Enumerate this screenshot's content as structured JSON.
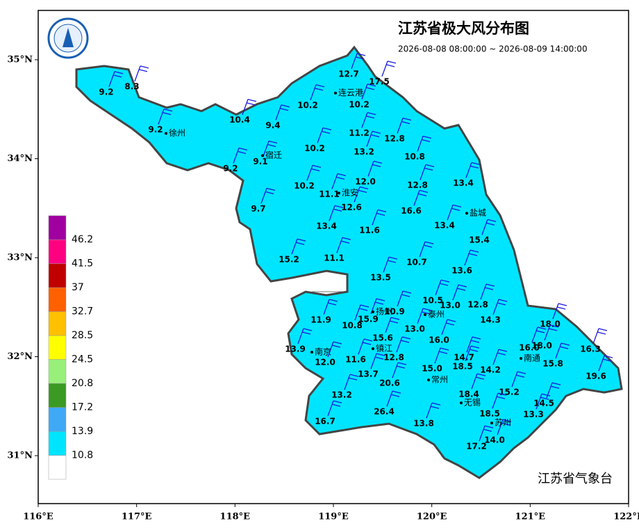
{
  "header": {
    "title": "江苏省极大风分布图",
    "time_range": "2026-08-08 08:00:00 ~ 2026-08-09 14:00:00"
  },
  "axes": {
    "lon_ticks": [
      {
        "value": 116,
        "label": "116°E"
      },
      {
        "value": 117,
        "label": "117°E"
      },
      {
        "value": 118,
        "label": "118°E"
      },
      {
        "value": 119,
        "label": "119°E"
      },
      {
        "value": 120,
        "label": "120°E"
      },
      {
        "value": 121,
        "label": "121°E"
      },
      {
        "value": 122,
        "label": "122°E"
      }
    ],
    "lat_ticks": [
      {
        "value": 35,
        "label": "35°N"
      },
      {
        "value": 34,
        "label": "34°N"
      },
      {
        "value": 33,
        "label": "33°N"
      },
      {
        "value": 32,
        "label": "32°N"
      },
      {
        "value": 31,
        "label": "31°N"
      }
    ]
  },
  "legend": {
    "levels": [
      10.8,
      13.9,
      17.2,
      20.8,
      24.5,
      28.5,
      32.7,
      37,
      41.5,
      46.2
    ],
    "colors": [
      "#ffffff",
      "#00e5ff",
      "#3fa9f5",
      "#3a9a23",
      "#98f07a",
      "#ffff00",
      "#ffc000",
      "#ff6000",
      "#c00000",
      "#ff0080",
      "#a000a0"
    ]
  },
  "stations": [
    "9.2",
    "8.3",
    "9.2",
    "10.4",
    "9.4",
    "10.2",
    "12.7",
    "17.5",
    "10.2",
    "11.2",
    "12.8",
    "13.2",
    "10.8",
    "10.2",
    "9.1",
    "9.2",
    "10.2",
    "11.1",
    "12.0",
    "12.8",
    "13.4",
    "9.7",
    "12.6",
    "16.6",
    "13.4",
    "11.6",
    "13.4",
    "15.4",
    "15.2",
    "11.1",
    "10.7",
    "13.6",
    "13.5",
    "10.5",
    "13.0",
    "12.8",
    "11.9",
    "10.8",
    "15.9",
    "10.9",
    "14.3",
    "18.0",
    "13.0",
    "15.6",
    "16.0",
    "16.3",
    "16.0",
    "18.0",
    "13.9",
    "12.8",
    "14.7",
    "18.5",
    "15.8",
    "12.0",
    "11.6",
    "15.0",
    "14.2",
    "13.7",
    "20.6",
    "19.6",
    "13.2",
    "18.4",
    "15.2",
    "14.5",
    "26.4",
    "18.5",
    "13.3",
    "16.7",
    "13.8",
    "14.0",
    "17.2"
  ],
  "cities": [
    "徐州",
    "宿迁",
    "淮安",
    "连云港",
    "盐城",
    "扬州",
    "泰州",
    "南京",
    "镇江",
    "常州",
    "南通",
    "无锡",
    "苏州"
  ],
  "credit": "江苏省气象台"
}
